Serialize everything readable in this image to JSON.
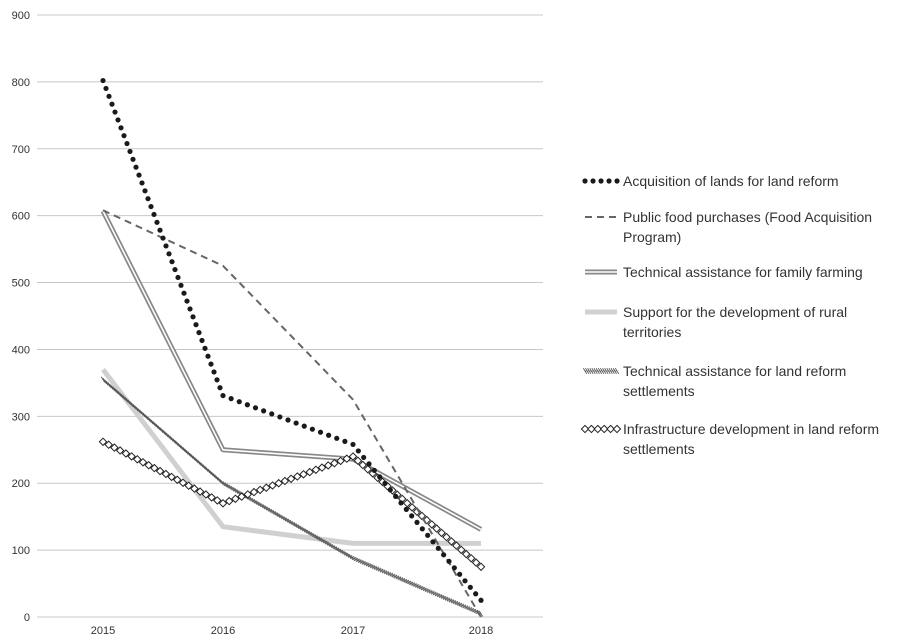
{
  "chart_data": {
    "type": "line",
    "title": "",
    "xlabel": "",
    "ylabel": "",
    "categories": [
      "2015",
      "2016",
      "2017",
      "2018"
    ],
    "ylim": [
      0,
      900
    ],
    "yticks": [
      "0",
      "100",
      "200",
      "300",
      "400",
      "500",
      "600",
      "700",
      "800",
      "900"
    ],
    "grid": true,
    "legend_position": "right",
    "series": [
      {
        "name": "Acquisition of lands for land reform",
        "name_lines": [
          "Acquisition of lands for land reform"
        ],
        "values": [
          802,
          331,
          258,
          25
        ],
        "style": "dotted",
        "color": "#1a1a1a"
      },
      {
        "name": "Public food purchases (Food Acquisition Program)",
        "name_lines": [
          "Public food purchases (Food Acquisition",
          "Program)"
        ],
        "values": [
          608,
          525,
          325,
          0
        ],
        "style": "dashed",
        "color": "#666666"
      },
      {
        "name": "Technical assistance for family farming",
        "name_lines": [
          "Technical assistance for family farming"
        ],
        "values": [
          607,
          250,
          236,
          131
        ],
        "style": "double",
        "color": "#888888"
      },
      {
        "name": "Support for the development of rural territories",
        "name_lines": [
          "Support for the development of rural",
          "territories"
        ],
        "values": [
          370,
          135,
          110,
          110
        ],
        "style": "thick",
        "color": "#d0d0d0"
      },
      {
        "name": "Technical assistance for land reform settlements",
        "name_lines": [
          "Technical assistance for land reform",
          "settlements"
        ],
        "values": [
          355,
          200,
          88,
          5
        ],
        "style": "hatched",
        "color": "#555555"
      },
      {
        "name": "Infrastructure development in land reform settlements",
        "name_lines": [
          "Infrastructure development in land reform",
          "settlements"
        ],
        "values": [
          262,
          170,
          240,
          75
        ],
        "style": "diamond",
        "color": "#222222"
      }
    ]
  }
}
